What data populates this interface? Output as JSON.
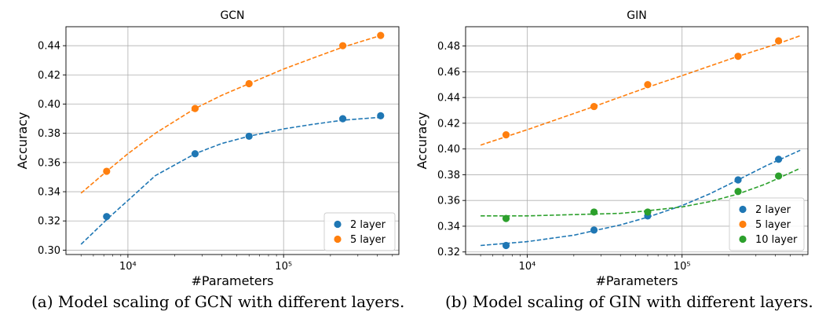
{
  "captions": {
    "a": "(a) Model scaling of GCN with different layers.",
    "b": "(b) Model scaling of GIN with different layers."
  },
  "chart_data": [
    {
      "type": "scatter",
      "title": "GCN",
      "xlabel": "#Parameters",
      "ylabel": "Accuracy",
      "xscale": "log",
      "xlim": [
        4000,
        550000
      ],
      "ylim": [
        0.297,
        0.453
      ],
      "xticks": [
        10000,
        100000
      ],
      "xtick_labels": [
        "10^4",
        "10^5"
      ],
      "yticks": [
        0.3,
        0.32,
        0.34,
        0.36,
        0.38,
        0.4,
        0.42,
        0.44
      ],
      "ytick_labels": [
        "0.30",
        "0.32",
        "0.34",
        "0.36",
        "0.38",
        "0.40",
        "0.42",
        "0.44"
      ],
      "grid": true,
      "legend_position": "lower-right",
      "series": [
        {
          "name": "2 layer",
          "color": "#1f77b4",
          "points": [
            [
              7300,
              0.323
            ],
            [
              27000,
              0.366
            ],
            [
              60000,
              0.378
            ],
            [
              240000,
              0.39
            ],
            [
              420000,
              0.392
            ]
          ],
          "fit": [
            [
              5000,
              0.304
            ],
            [
              7500,
              0.322
            ],
            [
              10000,
              0.334
            ],
            [
              15000,
              0.351
            ],
            [
              27000,
              0.366
            ],
            [
              40000,
              0.373
            ],
            [
              60000,
              0.378
            ],
            [
              100000,
              0.383
            ],
            [
              150000,
              0.386
            ],
            [
              240000,
              0.389
            ],
            [
              420000,
              0.391
            ]
          ]
        },
        {
          "name": "5 layer",
          "color": "#ff7f0e",
          "points": [
            [
              7300,
              0.354
            ],
            [
              27000,
              0.397
            ],
            [
              60000,
              0.414
            ],
            [
              240000,
              0.44
            ],
            [
              420000,
              0.447
            ]
          ],
          "fit": [
            [
              5000,
              0.339
            ],
            [
              7500,
              0.355
            ],
            [
              10000,
              0.366
            ],
            [
              15000,
              0.38
            ],
            [
              27000,
              0.397
            ],
            [
              40000,
              0.406
            ],
            [
              60000,
              0.414
            ],
            [
              100000,
              0.424
            ],
            [
              150000,
              0.431
            ],
            [
              240000,
              0.439
            ],
            [
              420000,
              0.447
            ]
          ]
        }
      ]
    },
    {
      "type": "scatter",
      "title": "GIN",
      "xlabel": "#Parameters",
      "ylabel": "Accuracy",
      "xscale": "log",
      "xlim": [
        4000,
        650000
      ],
      "ylim": [
        0.318,
        0.495
      ],
      "xticks": [
        10000,
        100000
      ],
      "xtick_labels": [
        "10^4",
        "10^5"
      ],
      "yticks": [
        0.32,
        0.34,
        0.36,
        0.38,
        0.4,
        0.42,
        0.44,
        0.46,
        0.48
      ],
      "ytick_labels": [
        "0.32",
        "0.34",
        "0.36",
        "0.38",
        "0.40",
        "0.42",
        "0.44",
        "0.46",
        "0.48"
      ],
      "grid": true,
      "legend_position": "lower-right",
      "series": [
        {
          "name": "2 layer",
          "color": "#1f77b4",
          "points": [
            [
              7300,
              0.325
            ],
            [
              27000,
              0.337
            ],
            [
              60000,
              0.348
            ],
            [
              230000,
              0.376
            ],
            [
              420000,
              0.392
            ]
          ],
          "fit": [
            [
              5000,
              0.325
            ],
            [
              10000,
              0.328
            ],
            [
              20000,
              0.333
            ],
            [
              40000,
              0.341
            ],
            [
              60000,
              0.347
            ],
            [
              100000,
              0.356
            ],
            [
              150000,
              0.365
            ],
            [
              230000,
              0.376
            ],
            [
              350000,
              0.387
            ],
            [
              580000,
              0.399
            ]
          ]
        },
        {
          "name": "5 layer",
          "color": "#ff7f0e",
          "points": [
            [
              7300,
              0.411
            ],
            [
              27000,
              0.433
            ],
            [
              60000,
              0.45
            ],
            [
              230000,
              0.472
            ],
            [
              420000,
              0.484
            ]
          ],
          "fit": [
            [
              5000,
              0.403
            ],
            [
              10000,
              0.415
            ],
            [
              27000,
              0.433
            ],
            [
              60000,
              0.448
            ],
            [
              100000,
              0.457
            ],
            [
              230000,
              0.472
            ],
            [
              420000,
              0.482
            ],
            [
              580000,
              0.488
            ]
          ]
        },
        {
          "name": "10 layer",
          "color": "#2ca02c",
          "points": [
            [
              7300,
              0.346
            ],
            [
              27000,
              0.351
            ],
            [
              60000,
              0.351
            ],
            [
              230000,
              0.367
            ],
            [
              420000,
              0.379
            ]
          ],
          "fit": [
            [
              5000,
              0.348
            ],
            [
              10000,
              0.348
            ],
            [
              20000,
              0.349
            ],
            [
              40000,
              0.35
            ],
            [
              60000,
              0.352
            ],
            [
              100000,
              0.355
            ],
            [
              150000,
              0.359
            ],
            [
              230000,
              0.365
            ],
            [
              350000,
              0.373
            ],
            [
              580000,
              0.385
            ]
          ]
        }
      ]
    }
  ]
}
